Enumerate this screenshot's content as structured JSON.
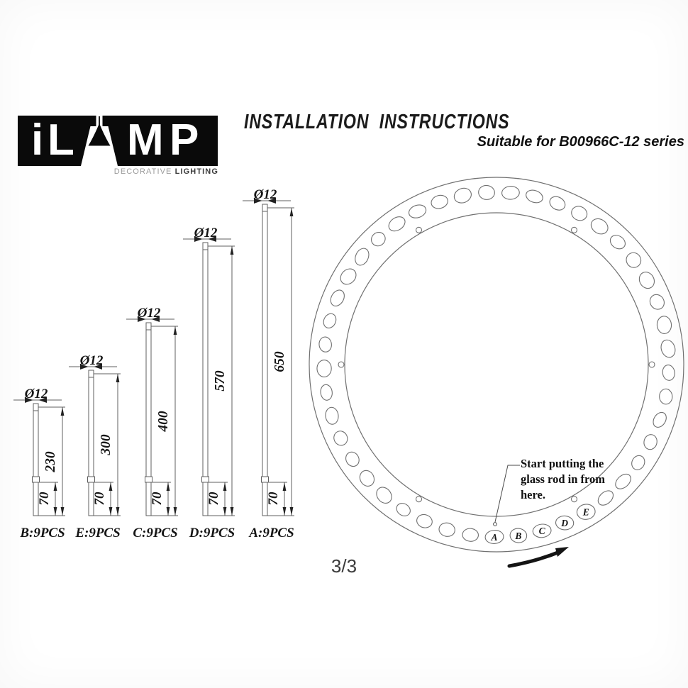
{
  "logo": {
    "letters": [
      "i",
      "L",
      "M",
      "P"
    ],
    "tagline_light": "DECORATIVE",
    "tagline_bold": "LIGHTING"
  },
  "header": {
    "title": "INSTALLATION  INSTRUCTIONS",
    "subtitle": "Suitable for B00966C-12 series"
  },
  "rods": [
    {
      "id": "B",
      "diameter_label": "Ø12",
      "length_mm": "230",
      "insert_mm": "70",
      "label": "B:9PCS"
    },
    {
      "id": "E",
      "diameter_label": "Ø12",
      "length_mm": "300",
      "insert_mm": "70",
      "label": "E:9PCS"
    },
    {
      "id": "C",
      "diameter_label": "Ø12",
      "length_mm": "400",
      "insert_mm": "70",
      "label": "C:9PCS"
    },
    {
      "id": "D",
      "diameter_label": "Ø12",
      "length_mm": "570",
      "insert_mm": "70",
      "label": "D:9PCS"
    },
    {
      "id": "A",
      "diameter_label": "Ø12",
      "length_mm": "650",
      "insert_mm": "70",
      "label": "A:9PCS"
    }
  ],
  "ring": {
    "hole_count": 45,
    "hole_labels": [
      "A",
      "B",
      "C",
      "D",
      "E"
    ],
    "note": {
      "line1": "Start putting the",
      "line2": "glass rod in from here."
    }
  },
  "footer": {
    "page_number": "3/3"
  }
}
